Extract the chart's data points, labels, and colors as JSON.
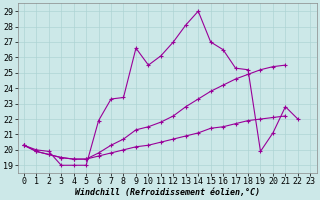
{
  "xlabel": "Windchill (Refroidissement éolien,°C)",
  "bg_color": "#cce8e8",
  "line_color": "#990099",
  "xlim": [
    -0.5,
    23.5
  ],
  "ylim": [
    18.5,
    29.5
  ],
  "xticks": [
    0,
    1,
    2,
    3,
    4,
    5,
    6,
    7,
    8,
    9,
    10,
    11,
    12,
    13,
    14,
    15,
    16,
    17,
    18,
    19,
    20,
    21,
    22,
    23
  ],
  "yticks": [
    19,
    20,
    21,
    22,
    23,
    24,
    25,
    26,
    27,
    28,
    29
  ],
  "line1_x": [
    0,
    1,
    2,
    3,
    4,
    5,
    6,
    7,
    8,
    9,
    10,
    11,
    12,
    13,
    14,
    15,
    16,
    17,
    18,
    19,
    20,
    21,
    22
  ],
  "line1_y": [
    20.3,
    20.0,
    19.9,
    19.0,
    19.0,
    19.0,
    21.9,
    23.3,
    23.4,
    26.6,
    25.5,
    26.1,
    27.0,
    28.1,
    29.0,
    27.0,
    26.5,
    25.3,
    25.2,
    19.9,
    21.1,
    22.8,
    22.0
  ],
  "line2_x": [
    0,
    1,
    2,
    3,
    4,
    5,
    6,
    7,
    8,
    9,
    10,
    11,
    12,
    13,
    14,
    15,
    16,
    17,
    18,
    19,
    20,
    21
  ],
  "line2_y": [
    20.3,
    19.9,
    19.7,
    19.5,
    19.4,
    19.4,
    19.8,
    20.3,
    20.7,
    21.3,
    21.5,
    21.8,
    22.2,
    22.8,
    23.3,
    23.8,
    24.2,
    24.6,
    24.9,
    25.2,
    25.4,
    25.5
  ],
  "line3_x": [
    0,
    1,
    2,
    3,
    4,
    5,
    6,
    7,
    8,
    9,
    10,
    11,
    12,
    13,
    14,
    15,
    16,
    17,
    18,
    19,
    20,
    21
  ],
  "line3_y": [
    20.3,
    19.9,
    19.7,
    19.5,
    19.4,
    19.4,
    19.6,
    19.8,
    20.0,
    20.2,
    20.3,
    20.5,
    20.7,
    20.9,
    21.1,
    21.4,
    21.5,
    21.7,
    21.9,
    22.0,
    22.1,
    22.2
  ],
  "tick_fontsize": 6,
  "xlabel_fontsize": 6,
  "marker_size": 3,
  "line_width": 0.8,
  "grid_color": "#aed4d4",
  "spine_color": "#888888"
}
